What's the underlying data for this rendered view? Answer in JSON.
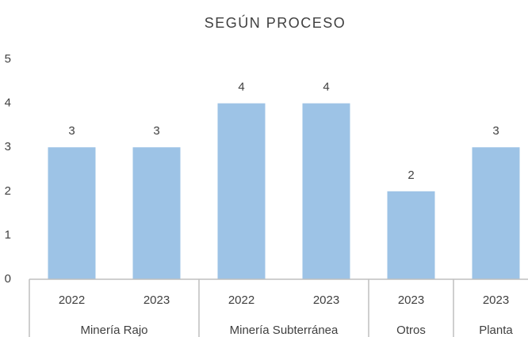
{
  "chart_data": {
    "type": "bar",
    "title": "SEGÚN PROCESO",
    "groups": [
      {
        "name": "Minería Rajo",
        "categories": [
          "2022",
          "2023"
        ],
        "values": [
          3,
          3
        ]
      },
      {
        "name": "Minería Subterránea",
        "categories": [
          "2022",
          "2023"
        ],
        "values": [
          4,
          4
        ]
      },
      {
        "name": "Otros",
        "categories": [
          "2023"
        ],
        "values": [
          2
        ]
      },
      {
        "name": "Planta",
        "categories": [
          "2023"
        ],
        "values": [
          3
        ]
      }
    ],
    "color": "#9dc3e6",
    "ylim": [
      0,
      5
    ],
    "yticks": [
      0,
      1,
      2,
      3,
      4,
      5
    ],
    "grid": false
  }
}
